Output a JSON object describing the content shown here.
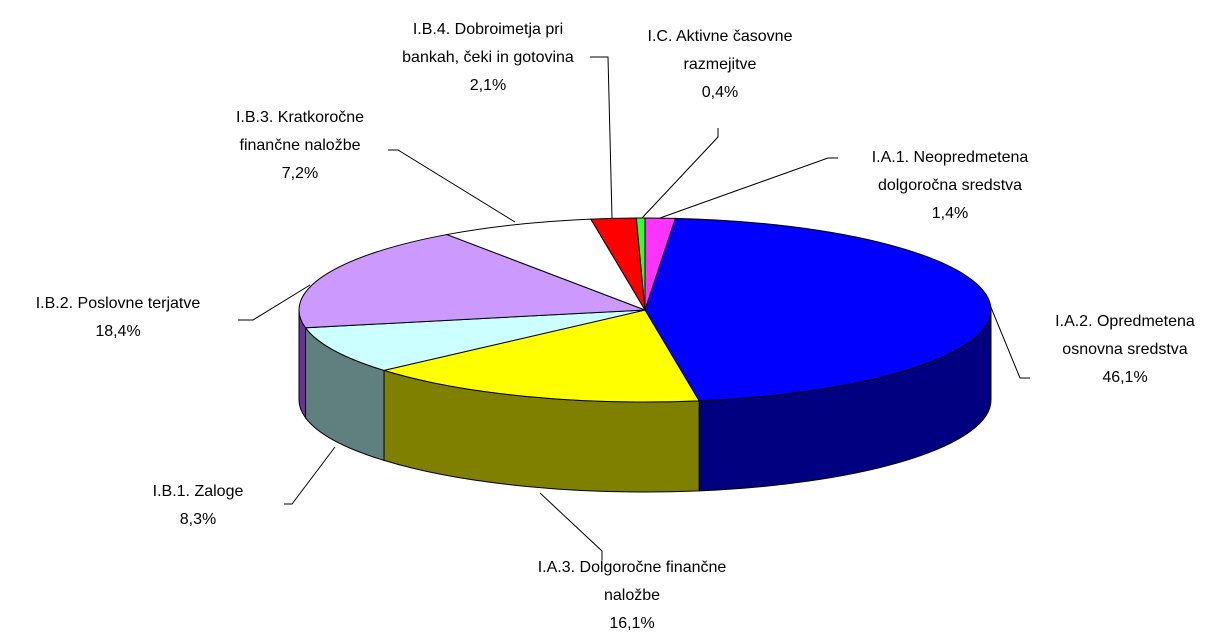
{
  "chart_data": {
    "type": "pie3d",
    "categories": [
      "I.A.1. Neopredmetena dolgoročna sredstva",
      "I.A.2. Opredmetena osnovna sredstva",
      "I.A.3. Dolgoročne finančne naložbe",
      "I.B.1. Zaloge",
      "I.B.2. Poslovne terjatve",
      "I.B.3. Kratkoročne finančne naložbe",
      "I.B.4. Dobroimetja pri bankah, čeki in gotovina",
      "I.C. Aktivne časovne razmejitve"
    ],
    "values": [
      1.4,
      46.1,
      16.1,
      8.3,
      18.4,
      7.2,
      2.1,
      0.4
    ],
    "value_labels": [
      "1,4%",
      "46,1%",
      "16,1%",
      "8,3%",
      "18,4%",
      "7,2%",
      "2,1%",
      "0,4%"
    ],
    "colors": [
      "#ff33ff",
      "#0000ff",
      "#ffff00",
      "#ccffff",
      "#cc99ff",
      "#ffffff",
      "#ff0000",
      "#33ff33"
    ],
    "side_colors": [
      "#800080",
      "#000080",
      "#808000",
      "#608080",
      "#663399",
      "#999999",
      "#800000",
      "#008000"
    ]
  }
}
